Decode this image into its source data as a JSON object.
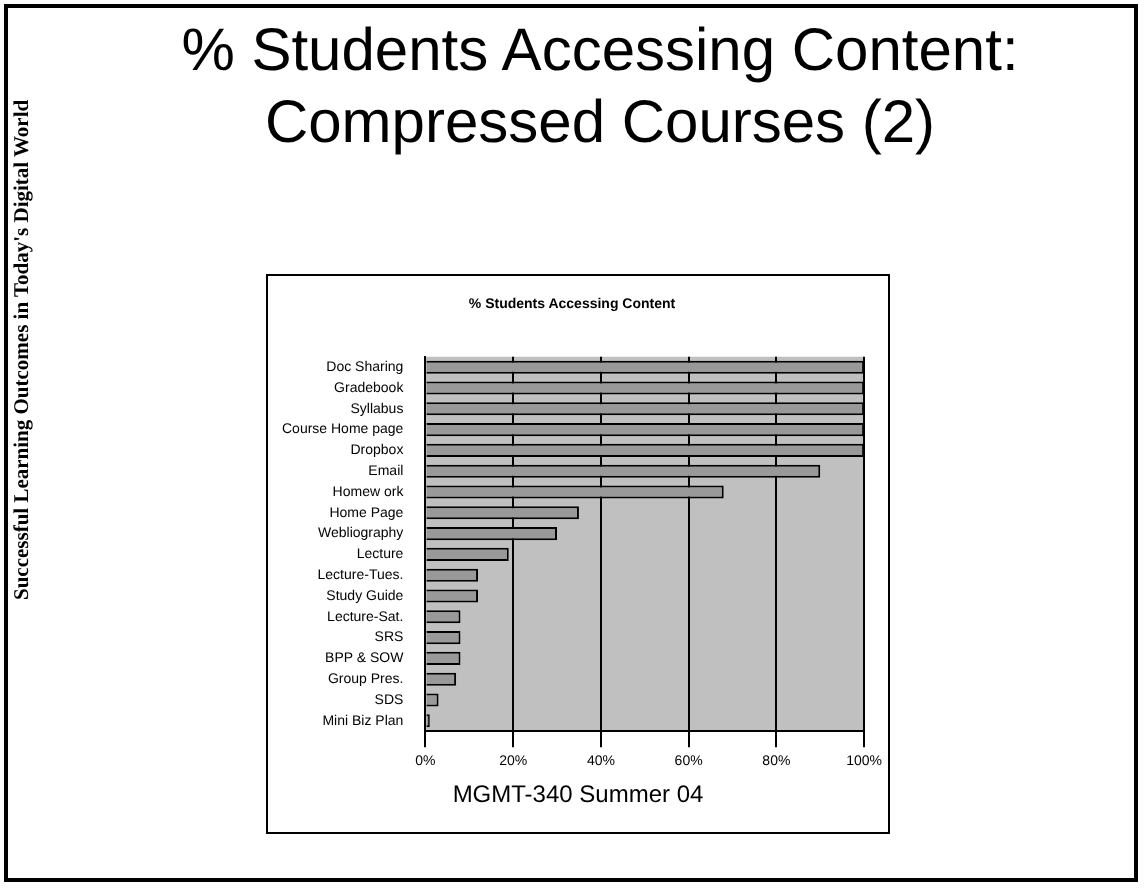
{
  "chart_data": {
    "type": "bar",
    "orientation": "horizontal",
    "title": "% Students Accessing Content",
    "subtitle": "% Students Accessing Content: Compressed Courses (2)",
    "categories": [
      "Doc Sharing",
      "Gradebook",
      "Syllabus",
      "Course Home page",
      "Dropbox",
      "Email",
      "Homew ork",
      "Home Page",
      "Webliography",
      "Lecture",
      "Lecture-Tues.",
      "Study Guide",
      "Lecture-Sat.",
      "SRS",
      "BPP & SOW",
      "Group Pres.",
      "SDS",
      "Mini Biz Plan"
    ],
    "values": [
      100,
      100,
      100,
      100,
      100,
      90,
      68,
      35,
      30,
      19,
      12,
      12,
      8,
      8,
      8,
      7,
      3,
      1
    ],
    "color": "#999999",
    "xlim": [
      0,
      100
    ],
    "xticks": [
      {
        "value": 0,
        "label": "0%"
      },
      {
        "value": 20,
        "label": "20%"
      },
      {
        "value": 40,
        "label": "40%"
      },
      {
        "value": 60,
        "label": "60%"
      },
      {
        "value": 80,
        "label": "80%"
      },
      {
        "value": 100,
        "label": "100%"
      }
    ],
    "grid": "x",
    "annotations": [
      "MGMT-340 Summer 04",
      "Successful Learning Outcomes in Today's Digital World"
    ]
  }
}
